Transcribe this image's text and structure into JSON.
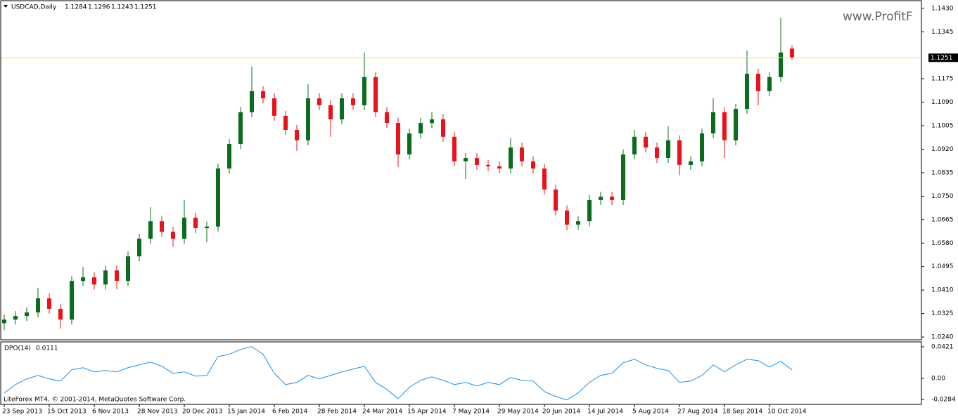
{
  "chart_data": [
    {
      "type": "candlestick",
      "title": "USDCAD,Daily",
      "categories": [
        "23 Sep 2013",
        null,
        null,
        null,
        "15 Oct 2013",
        null,
        null,
        null,
        "6 Nov 2013",
        null,
        null,
        null,
        "28 Nov 2013",
        null,
        null,
        null,
        "20 Dec 2013",
        null,
        null,
        null,
        "15 Jan 2014",
        null,
        null,
        null,
        "6 Feb 2014",
        null,
        null,
        null,
        "28 Feb 2014",
        null,
        null,
        null,
        "24 Mar 2014",
        null,
        null,
        null,
        "15 Apr 2014",
        null,
        null,
        null,
        "7 May 2014",
        null,
        null,
        null,
        "29 May 2014",
        null,
        null,
        null,
        "20 Jun 2014",
        null,
        null,
        null,
        "14 Jul 2014",
        null,
        null,
        null,
        "5 Aug 2014",
        null,
        null,
        null,
        "27 Aug 2014",
        null,
        null,
        null,
        "18 Sep 2014",
        null,
        null,
        null,
        "10 Oct 2014",
        null,
        null
      ],
      "open": [
        1.029,
        1.0303,
        1.0316,
        1.0329,
        1.038,
        1.0342,
        1.0303,
        1.0443,
        1.0456,
        1.043,
        1.0481,
        1.0443,
        1.0532,
        1.0596,
        1.0659,
        1.0621,
        1.0596,
        1.0672,
        1.0634,
        1.064,
        1.085,
        1.0939,
        1.1054,
        1.113,
        1.1104,
        1.1041,
        1.099,
        1.0952,
        1.1104,
        1.1079,
        1.1028,
        1.1104,
        1.1079,
        1.1181,
        1.1054,
        1.1015,
        1.0901,
        1.0977,
        1.1015,
        1.1028,
        1.0965,
        1.0876,
        1.0888,
        1.0863,
        1.0858,
        1.085,
        1.0926,
        1.0876,
        1.085,
        1.0774,
        1.0698,
        1.0647,
        1.0659,
        1.0736,
        1.0748,
        1.0736,
        1.0901,
        1.0965,
        1.0926,
        1.0888,
        1.0952,
        1.0863,
        1.0876,
        1.0977,
        1.1054,
        1.0952,
        1.1066,
        1.1193,
        1.113,
        1.1181,
        1.1284
      ],
      "high": [
        1.0321,
        1.0334,
        1.0347,
        1.0418,
        1.0398,
        1.036,
        1.0461,
        1.0494,
        1.0474,
        1.0499,
        1.0499,
        1.055,
        1.0614,
        1.071,
        1.0677,
        1.0639,
        1.0736,
        1.069,
        1.0658,
        1.0868,
        1.0957,
        1.1072,
        1.1219,
        1.1148,
        1.1122,
        1.1059,
        1.1008,
        1.1155,
        1.1122,
        1.1097,
        1.1122,
        1.1122,
        1.127,
        1.1199,
        1.1072,
        1.1033,
        1.0995,
        1.1033,
        1.1054,
        1.1046,
        1.0983,
        1.0906,
        1.0906,
        1.0881,
        1.0876,
        1.096,
        1.0944,
        1.0894,
        1.0868,
        1.0792,
        1.0716,
        1.0677,
        1.0754,
        1.0766,
        1.0766,
        1.0919,
        1.099,
        1.0983,
        1.0944,
        1.1003,
        1.097,
        1.0894,
        1.0995,
        1.1104,
        1.1072,
        1.1084,
        1.1277,
        1.1211,
        1.1199,
        1.1395,
        1.1296
      ],
      "low": [
        1.0265,
        1.0285,
        1.0298,
        1.0311,
        1.0324,
        1.027,
        1.0285,
        1.0425,
        1.0412,
        1.0412,
        1.0413,
        1.0425,
        1.0514,
        1.0578,
        1.0603,
        1.0566,
        1.0578,
        1.0616,
        1.0583,
        1.0622,
        1.0832,
        1.0921,
        1.1036,
        1.1086,
        1.1023,
        1.0972,
        1.0914,
        1.0934,
        1.1061,
        1.0965,
        1.101,
        1.1061,
        1.1061,
        1.1036,
        1.0997,
        1.0855,
        1.0883,
        1.0959,
        1.0997,
        1.0947,
        1.0858,
        1.0812,
        1.0845,
        1.084,
        1.0832,
        1.0832,
        1.0858,
        1.0832,
        1.0756,
        1.068,
        1.0626,
        1.0629,
        1.0641,
        1.0718,
        1.0718,
        1.0718,
        1.0883,
        1.0908,
        1.087,
        1.087,
        1.0825,
        1.0845,
        1.0858,
        1.0959,
        1.0888,
        1.0934,
        1.1048,
        1.1079,
        1.1112,
        1.1163,
        1.1243
      ],
      "close": [
        1.0303,
        1.0316,
        1.0329,
        1.038,
        1.0342,
        1.0303,
        1.0443,
        1.0456,
        1.043,
        1.0481,
        1.0443,
        1.0532,
        1.0596,
        1.0659,
        1.0621,
        1.0596,
        1.0672,
        1.0634,
        1.064,
        1.085,
        1.0939,
        1.1054,
        1.113,
        1.1104,
        1.1041,
        1.099,
        1.0952,
        1.1104,
        1.1079,
        1.1028,
        1.1104,
        1.1079,
        1.1181,
        1.1054,
        1.1015,
        1.0901,
        1.0977,
        1.1015,
        1.1028,
        1.0965,
        1.0876,
        1.0888,
        1.0863,
        1.0858,
        1.085,
        1.0926,
        1.0876,
        1.085,
        1.0774,
        1.0698,
        1.0647,
        1.0659,
        1.0736,
        1.0748,
        1.0736,
        1.0901,
        1.0965,
        1.0926,
        1.0888,
        1.0952,
        1.0863,
        1.0876,
        1.0977,
        1.1054,
        1.0952,
        1.1066,
        1.1193,
        1.113,
        1.1181,
        1.127,
        1.1251
      ],
      "up_color": "#0b6b1e",
      "down_color": "#e8131b",
      "price_line_color": "#f2ea1a",
      "ylim": [
        1.023,
        1.1455
      ],
      "yticks": [
        {
          "value": 1.143,
          "label": "1.1430"
        },
        1.1345,
        1.1175,
        {
          "value": 1.109,
          "label": "1.1090"
        },
        1.1005,
        {
          "value": 1.092,
          "label": "1.0920"
        },
        1.0835,
        {
          "value": 1.075,
          "label": "1.0750"
        },
        1.0665,
        {
          "value": 1.058,
          "label": "1.0580"
        },
        1.0495,
        {
          "value": 1.041,
          "label": "1.0410"
        },
        1.0325,
        {
          "value": 1.024,
          "label": "1.0240"
        }
      ]
    },
    {
      "type": "line",
      "title": "DPO(14)",
      "color": "#1e8fe6",
      "values": [
        -0.0197,
        -0.0085,
        -0.0009,
        0.0038,
        -0.0009,
        -0.0038,
        0.0113,
        0.0141,
        0.0085,
        0.0103,
        0.0085,
        0.0141,
        0.0179,
        0.0216,
        0.016,
        0.0066,
        0.0085,
        0.0028,
        0.0038,
        0.0291,
        0.032,
        0.0385,
        0.0423,
        0.032,
        0.0066,
        -0.0085,
        -0.0056,
        0.0038,
        -0.0009,
        0.0038,
        0.0085,
        0.0122,
        0.016,
        -0.0056,
        -0.015,
        -0.0273,
        -0.0122,
        -0.0028,
        0.0019,
        -0.0028,
        -0.0085,
        -0.0056,
        -0.0103,
        -0.0056,
        -0.0085,
        0.0009,
        -0.0028,
        -0.0038,
        -0.0179,
        -0.0244,
        -0.0291,
        -0.0197,
        -0.0056,
        0.0038,
        0.0066,
        0.0207,
        0.0254,
        0.0179,
        0.0132,
        0.0103,
        -0.0056,
        -0.0038,
        0.0038,
        0.0179,
        0.0085,
        0.0179,
        0.0254,
        0.0235,
        0.015,
        0.0226,
        0.0111
      ],
      "ylim": [
        -0.035,
        0.0477
      ],
      "yticks": [
        0.0421,
        {
          "value": 0,
          "label": "0.00"
        },
        -0.0284
      ],
      "annotation": "LiteForex MT4, © 2001-2014, MetaQuotes Software Corp."
    }
  ],
  "watermark": "www.ProfitF"
}
